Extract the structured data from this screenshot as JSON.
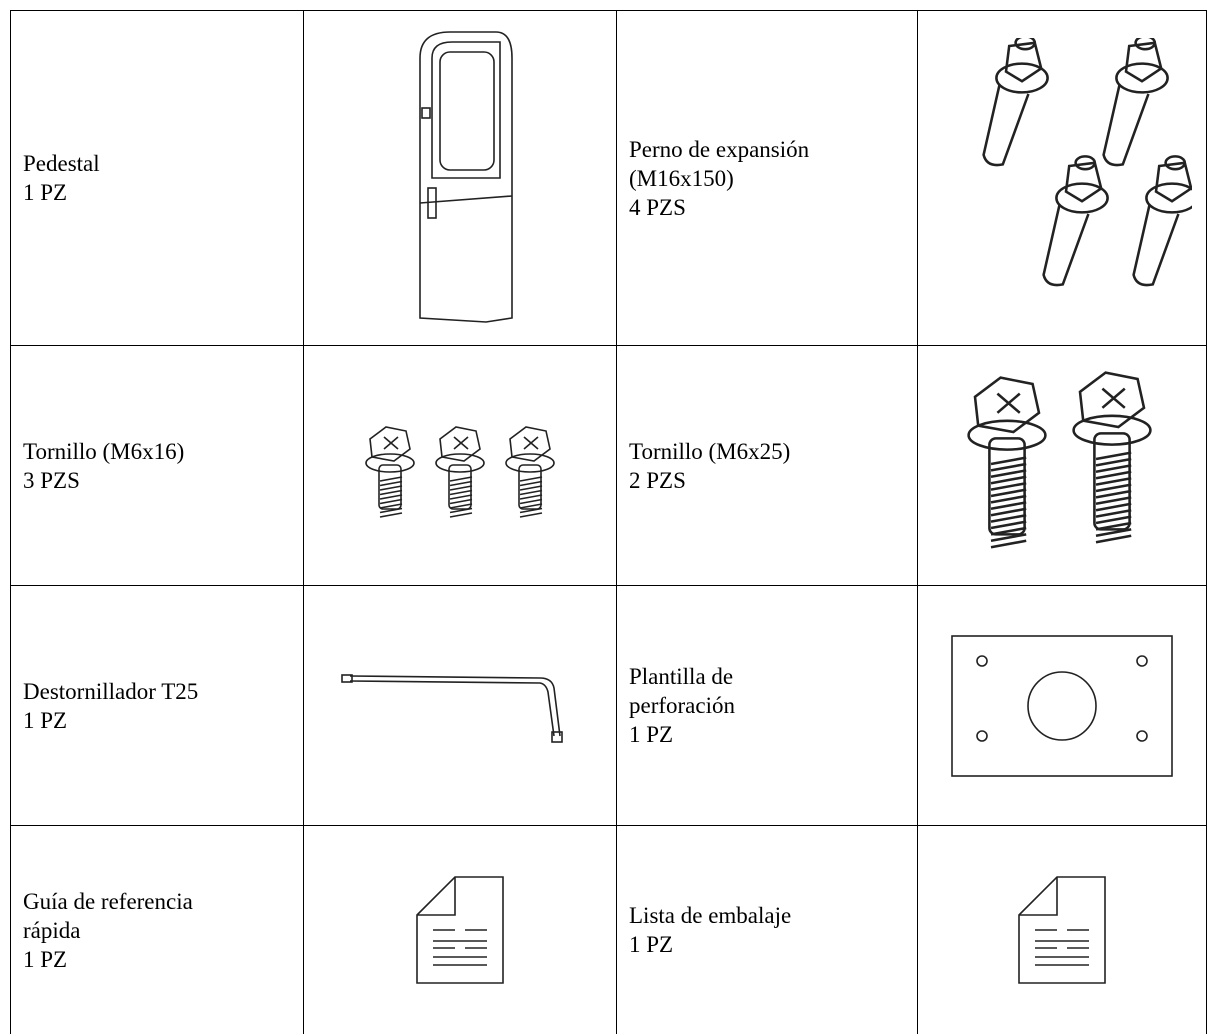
{
  "table": {
    "rows": [
      [
        [
          "Pedestal",
          "1 PZ"
        ],
        [
          "Perno de expansión",
          "(M16x150)",
          "4 PZS"
        ]
      ],
      [
        [
          "Tornillo (M6x16)",
          "3 PZS"
        ],
        [
          "Tornillo (M6x25)",
          "2 PZS"
        ]
      ],
      [
        [
          "Destornillador T25",
          "1 PZ"
        ],
        [
          "Plantilla de",
          "perforación",
          "1 PZ"
        ]
      ],
      [
        [
          "Guía de referencia",
          "rápida",
          "1 PZ"
        ],
        [
          "Lista de embalaje",
          "1 PZ"
        ]
      ]
    ]
  }
}
